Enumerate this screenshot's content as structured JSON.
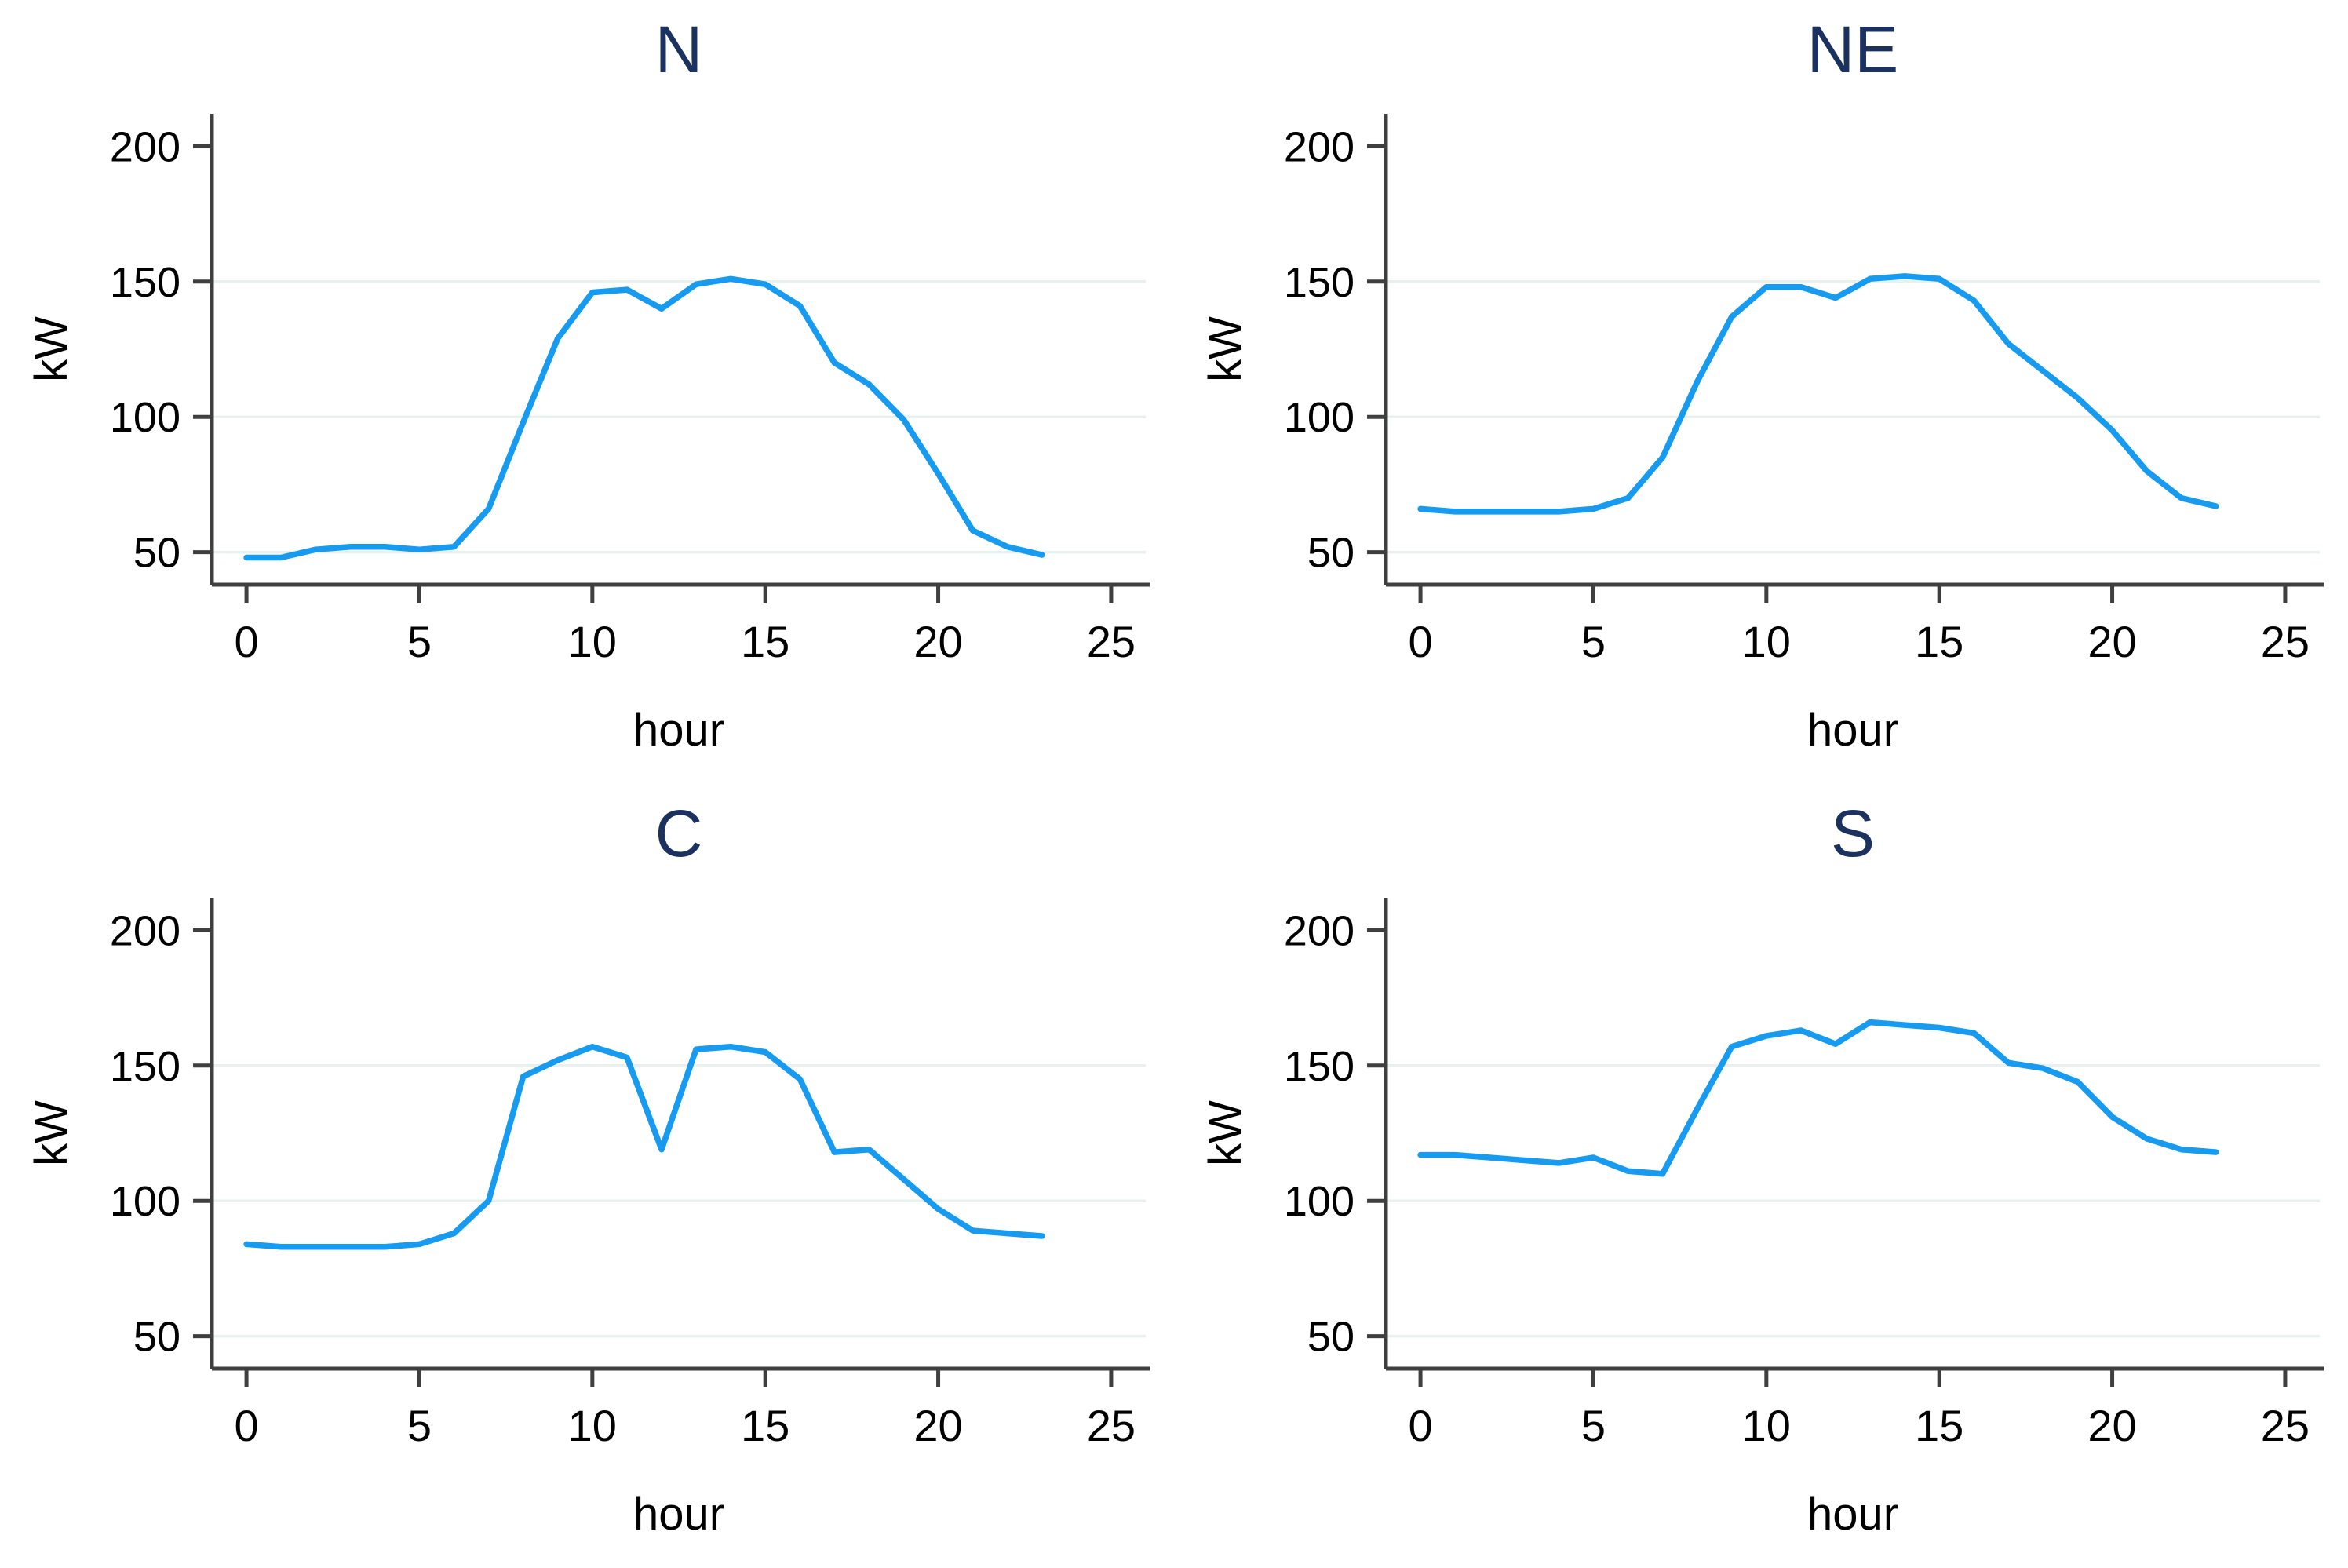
{
  "page": {
    "background": "#ffffff"
  },
  "colors": {
    "line": "#169bf1",
    "title": "#1b3160",
    "axis": "#3f3f3f",
    "grid": "#e9f1ef",
    "tick_text": "#000000"
  },
  "chart_data": [
    {
      "type": "line",
      "title": "N",
      "xlabel": "hour",
      "ylabel": "kW",
      "x": [
        0,
        1,
        2,
        3,
        4,
        5,
        6,
        7,
        8,
        9,
        10,
        11,
        12,
        13,
        14,
        15,
        16,
        17,
        18,
        19,
        20,
        21,
        22,
        23
      ],
      "values": [
        48,
        48,
        51,
        52,
        52,
        51,
        52,
        66,
        98,
        129,
        146,
        147,
        140,
        149,
        151,
        149,
        141,
        120,
        112,
        99,
        79,
        58,
        52,
        49
      ],
      "xticks": [
        0,
        5,
        10,
        15,
        20,
        25
      ],
      "yticks": [
        50,
        100,
        150,
        200
      ],
      "grid_yticks": [
        50,
        100,
        150
      ],
      "xlim": [
        -1,
        26
      ],
      "ylim": [
        38,
        212
      ],
      "grid": "horizontal",
      "legend": "none"
    },
    {
      "type": "line",
      "title": "NE",
      "xlabel": "hour",
      "ylabel": "kW",
      "x": [
        0,
        1,
        2,
        3,
        4,
        5,
        6,
        7,
        8,
        9,
        10,
        11,
        12,
        13,
        14,
        15,
        16,
        17,
        18,
        19,
        20,
        21,
        22,
        23
      ],
      "values": [
        66,
        65,
        65,
        65,
        65,
        66,
        70,
        85,
        113,
        137,
        148,
        148,
        144,
        151,
        152,
        151,
        143,
        127,
        117,
        107,
        95,
        80,
        70,
        67
      ],
      "xticks": [
        0,
        5,
        10,
        15,
        20,
        25
      ],
      "yticks": [
        50,
        100,
        150,
        200
      ],
      "grid_yticks": [
        50,
        100,
        150
      ],
      "xlim": [
        -1,
        26
      ],
      "ylim": [
        38,
        212
      ],
      "grid": "horizontal",
      "legend": "none"
    },
    {
      "type": "line",
      "title": "C",
      "xlabel": "hour",
      "ylabel": "kW",
      "x": [
        0,
        1,
        2,
        3,
        4,
        5,
        6,
        7,
        8,
        9,
        10,
        11,
        12,
        13,
        14,
        15,
        16,
        17,
        18,
        19,
        20,
        21,
        22,
        23
      ],
      "values": [
        84,
        83,
        83,
        83,
        83,
        84,
        88,
        100,
        146,
        152,
        157,
        153,
        119,
        156,
        157,
        155,
        145,
        118,
        119,
        108,
        97,
        89,
        88,
        87
      ],
      "xticks": [
        0,
        5,
        10,
        15,
        20,
        25
      ],
      "yticks": [
        50,
        100,
        150,
        200
      ],
      "grid_yticks": [
        50,
        100,
        150
      ],
      "xlim": [
        -1,
        26
      ],
      "ylim": [
        38,
        212
      ],
      "grid": "horizontal",
      "legend": "none"
    },
    {
      "type": "line",
      "title": "S",
      "xlabel": "hour",
      "ylabel": "kW",
      "x": [
        0,
        1,
        2,
        3,
        4,
        5,
        6,
        7,
        8,
        9,
        10,
        11,
        12,
        13,
        14,
        15,
        16,
        17,
        18,
        19,
        20,
        21,
        22,
        23
      ],
      "values": [
        117,
        117,
        116,
        115,
        114,
        116,
        111,
        110,
        134,
        157,
        161,
        163,
        158,
        166,
        165,
        164,
        162,
        151,
        149,
        144,
        131,
        123,
        119,
        118
      ],
      "xticks": [
        0,
        5,
        10,
        15,
        20,
        25
      ],
      "yticks": [
        50,
        100,
        150,
        200
      ],
      "grid_yticks": [
        50,
        100,
        150
      ],
      "xlim": [
        -1,
        26
      ],
      "ylim": [
        38,
        212
      ],
      "grid": "horizontal",
      "legend": "none"
    }
  ]
}
